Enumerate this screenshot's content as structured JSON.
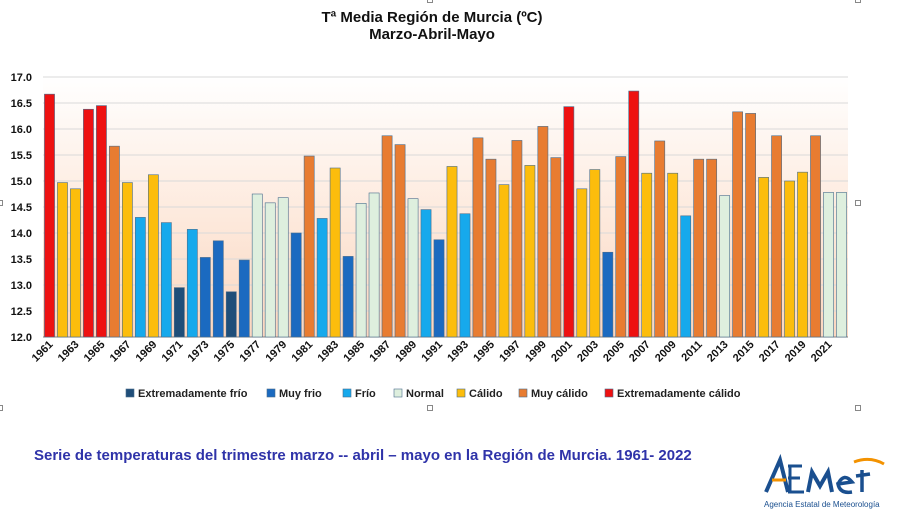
{
  "chart_data": {
    "type": "bar",
    "title": "Tª Media Región de Murcia (ºC)",
    "subtitle": "Marzo-Abril-Mayo",
    "ylim": [
      12.0,
      17.0
    ],
    "yticks": [
      "12.0",
      "12.5",
      "13.0",
      "13.5",
      "14.0",
      "14.5",
      "15.0",
      "15.5",
      "16.0",
      "16.5",
      "17.0"
    ],
    "grid": true,
    "legend_position": "bottom",
    "categories": [
      "1961",
      "1962",
      "1963",
      "1964",
      "1965",
      "1966",
      "1967",
      "1968",
      "1969",
      "1970",
      "1971",
      "1972",
      "1973",
      "1974",
      "1975",
      "1976",
      "1977",
      "1978",
      "1979",
      "1980",
      "1981",
      "1982",
      "1983",
      "1984",
      "1985",
      "1986",
      "1987",
      "1988",
      "1989",
      "1990",
      "1991",
      "1992",
      "1993",
      "1994",
      "1995",
      "1996",
      "1997",
      "1998",
      "1999",
      "2000",
      "2001",
      "2002",
      "2003",
      "2004",
      "2005",
      "2006",
      "2007",
      "2008",
      "2009",
      "2010",
      "2011",
      "2012",
      "2013",
      "2014",
      "2015",
      "2016",
      "2017",
      "2018",
      "2019",
      "2020",
      "2021",
      "2022"
    ],
    "values": [
      16.67,
      14.97,
      14.85,
      16.38,
      16.45,
      15.67,
      14.97,
      14.3,
      15.12,
      14.2,
      12.95,
      14.07,
      13.53,
      13.85,
      12.87,
      13.48,
      14.75,
      14.58,
      14.68,
      14.0,
      15.48,
      14.28,
      15.25,
      13.55,
      14.57,
      14.77,
      15.87,
      15.7,
      14.66,
      14.45,
      13.87,
      15.28,
      14.37,
      15.83,
      15.42,
      14.93,
      15.78,
      15.3,
      16.05,
      15.45,
      16.43,
      14.85,
      15.22,
      13.63,
      15.47,
      16.73,
      15.15,
      15.77,
      15.15,
      14.33,
      15.42,
      15.42,
      14.72,
      16.33,
      16.3,
      15.07,
      15.87,
      15.0,
      15.17,
      15.87,
      14.78,
      14.78
    ],
    "classes": [
      "ec",
      "c",
      "c",
      "ec",
      "ec",
      "mc",
      "c",
      "f",
      "c",
      "f",
      "ef",
      "f",
      "mf",
      "mf",
      "ef",
      "mf",
      "n",
      "n",
      "n",
      "mf",
      "mc",
      "f",
      "c",
      "mf",
      "n",
      "n",
      "mc",
      "mc",
      "n",
      "f",
      "mf",
      "c",
      "f",
      "mc",
      "mc",
      "c",
      "mc",
      "c",
      "mc",
      "mc",
      "ec",
      "c",
      "c",
      "mf",
      "mc",
      "ec",
      "c",
      "mc",
      "c",
      "f",
      "mc",
      "mc",
      "n",
      "mc",
      "mc",
      "c",
      "mc",
      "c",
      "c",
      "mc",
      "n",
      "n"
    ],
    "xtick_labels": [
      "1961",
      "1963",
      "1965",
      "1967",
      "1969",
      "1971",
      "1973",
      "1975",
      "1977",
      "1979",
      "1981",
      "1983",
      "1985",
      "1987",
      "1989",
      "1991",
      "1993",
      "1995",
      "1997",
      "1999",
      "2001",
      "2003",
      "2005",
      "2007",
      "2009",
      "2011",
      "2013",
      "2015",
      "2017",
      "2019",
      "2021"
    ],
    "legend": [
      {
        "key": "ef",
        "label": "Extremadamente frío",
        "color": "#1f4e79"
      },
      {
        "key": "mf",
        "label": "Muy frio",
        "color": "#1b6ac0"
      },
      {
        "key": "f",
        "label": "Frío",
        "color": "#16a9ec"
      },
      {
        "key": "n",
        "label": "Normal",
        "color": "#deefde"
      },
      {
        "key": "c",
        "label": "Cálido",
        "color": "#fcbd0c"
      },
      {
        "key": "mc",
        "label": "Muy cálido",
        "color": "#e87c31"
      },
      {
        "key": "ec",
        "label": "Extremadamente cálido",
        "color": "#ee1111"
      }
    ]
  },
  "caption": "Serie  de temperaturas del trimestre  marzo -- abril – mayo en la Región de Murcia. 1961- 2022",
  "logo": {
    "text": "AEmet",
    "org": "Agencia Estatal de Meteorología",
    "icon": "aemet-logo"
  },
  "colors": {
    "caption": "#2f33a9",
    "logo_blue": "#1a4f8f",
    "logo_orange": "#f39200"
  }
}
